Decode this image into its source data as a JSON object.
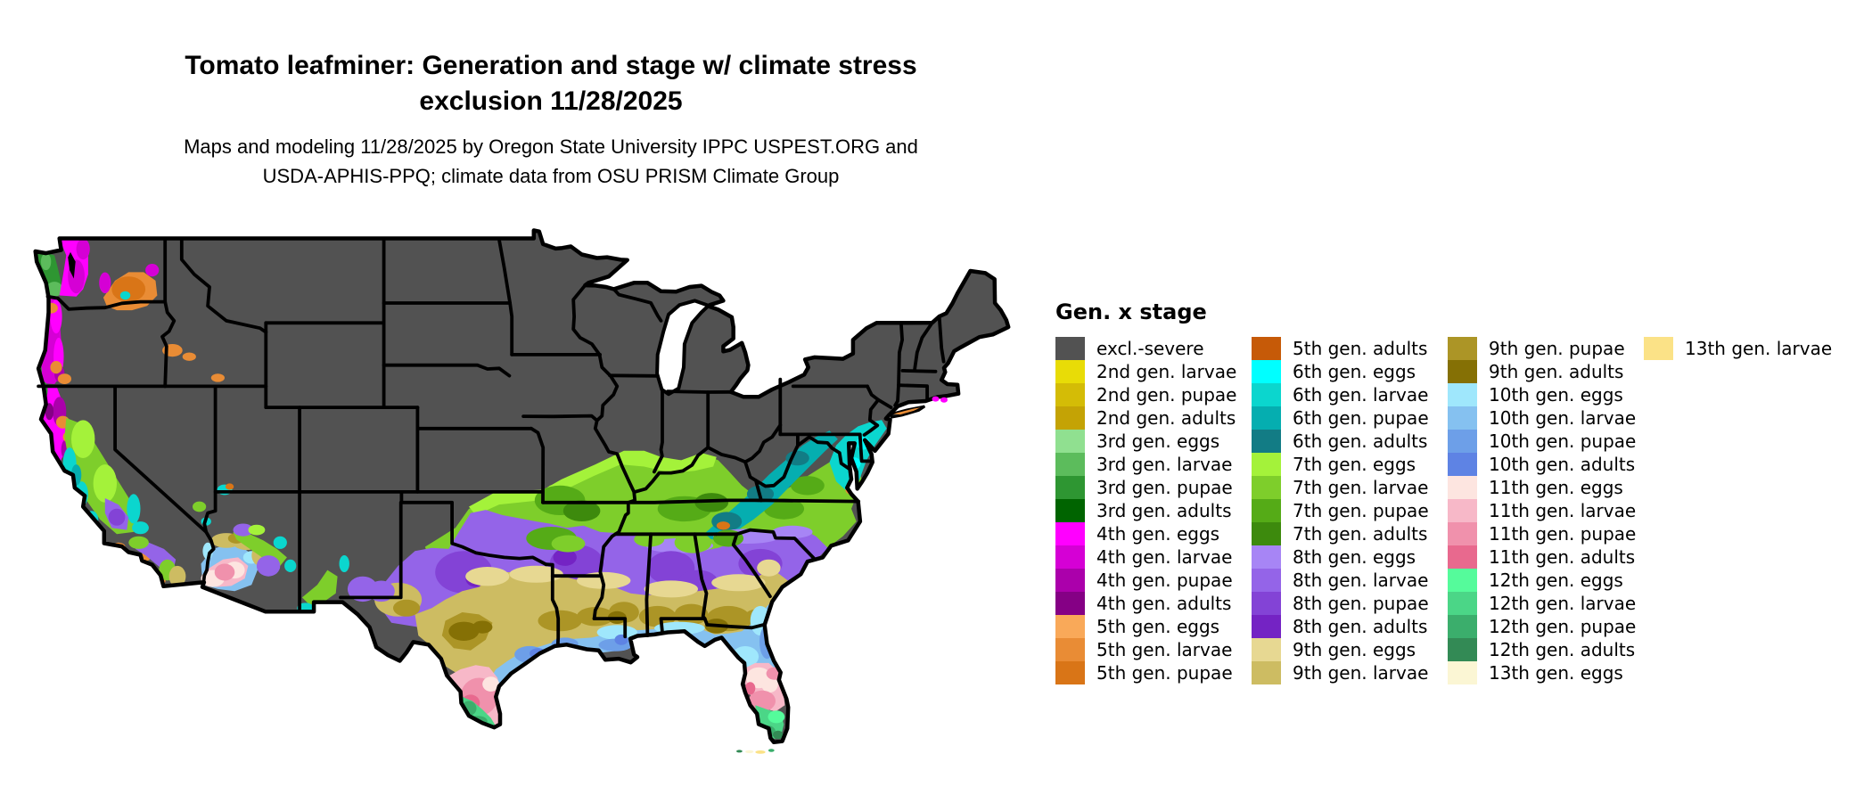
{
  "title": {
    "line1": "Tomato leafminer: Generation and stage w/ climate stress",
    "line2": "exclusion 11/28/2025"
  },
  "subtitle": {
    "line1": "Maps and modeling 11/28/2025 by Oregon State University IPPC USPEST.ORG and",
    "line2": "USDA-APHIS-PPQ; climate data from OSU PRISM Climate Group"
  },
  "legend": {
    "title": "Gen. x stage",
    "rows_per_column": 15,
    "items": [
      {
        "key": "excl",
        "label": "excl.-severe",
        "color": "#525252"
      },
      {
        "key": "g2_larvae",
        "label": "2nd gen. larvae",
        "color": "#E8DC07"
      },
      {
        "key": "g2_pupae",
        "label": "2nd gen. pupae",
        "color": "#D4BC06"
      },
      {
        "key": "g2_adults",
        "label": "2nd gen. adults",
        "color": "#C4A305"
      },
      {
        "key": "g3_eggs",
        "label": "3rd gen. eggs",
        "color": "#90E090"
      },
      {
        "key": "g3_larvae",
        "label": "3rd gen. larvae",
        "color": "#5CBC5C"
      },
      {
        "key": "g3_pupae",
        "label": "3rd gen. pupae",
        "color": "#2E9632"
      },
      {
        "key": "g3_adults",
        "label": "3rd gen. adults",
        "color": "#006400"
      },
      {
        "key": "g4_eggs",
        "label": "4th gen. eggs",
        "color": "#FF00FF"
      },
      {
        "key": "g4_larvae",
        "label": "4th gen. larvae",
        "color": "#D500D5"
      },
      {
        "key": "g4_pupae",
        "label": "4th gen. pupae",
        "color": "#AB00AB"
      },
      {
        "key": "g4_adults",
        "label": "4th gen. adults",
        "color": "#850085"
      },
      {
        "key": "g5_eggs",
        "label": "5th gen. eggs",
        "color": "#F9A959"
      },
      {
        "key": "g5_larvae",
        "label": "5th gen. larvae",
        "color": "#E98C35"
      },
      {
        "key": "g5_pupae",
        "label": "5th gen. pupae",
        "color": "#D97517"
      },
      {
        "key": "g5_adults",
        "label": "5th gen. adults",
        "color": "#C65A08"
      },
      {
        "key": "g6_eggs",
        "label": "6th gen. eggs",
        "color": "#00FFFF"
      },
      {
        "key": "g6_larvae",
        "label": "6th gen. larvae",
        "color": "#0BD6CE"
      },
      {
        "key": "g6_pupae",
        "label": "6th gen. pupae",
        "color": "#05AEB0"
      },
      {
        "key": "g6_adults",
        "label": "6th gen. adults",
        "color": "#127C85"
      },
      {
        "key": "g7_eggs",
        "label": "7th gen. eggs",
        "color": "#A4F23A"
      },
      {
        "key": "g7_larvae",
        "label": "7th gen. larvae",
        "color": "#7ECE2B"
      },
      {
        "key": "g7_pupae",
        "label": "7th gen. pupae",
        "color": "#55AB17"
      },
      {
        "key": "g7_adults",
        "label": "7th gen. adults",
        "color": "#3D8A0D"
      },
      {
        "key": "g8_eggs",
        "label": "8th gen. eggs",
        "color": "#A785F5"
      },
      {
        "key": "g8_larvae",
        "label": "8th gen. larvae",
        "color": "#9464E8"
      },
      {
        "key": "g8_pupae",
        "label": "8th gen. pupae",
        "color": "#8343D6"
      },
      {
        "key": "g8_adults",
        "label": "8th gen. adults",
        "color": "#7423C4"
      },
      {
        "key": "g9_eggs",
        "label": "9th gen. eggs",
        "color": "#E7D892"
      },
      {
        "key": "g9_larvae",
        "label": "9th gen. larvae",
        "color": "#CDBC62"
      },
      {
        "key": "g9_pupae",
        "label": "9th gen. pupae",
        "color": "#AC9526"
      },
      {
        "key": "g9_adults",
        "label": "9th gen. adults",
        "color": "#857005"
      },
      {
        "key": "g10_eggs",
        "label": "10th gen. eggs",
        "color": "#9FE7FC"
      },
      {
        "key": "g10_larvae",
        "label": "10th gen. larvae",
        "color": "#85C1F0"
      },
      {
        "key": "g10_pupae",
        "label": "10th gen. pupae",
        "color": "#6D9FE8"
      },
      {
        "key": "g10_adults",
        "label": "10th gen. adults",
        "color": "#5E83E4"
      },
      {
        "key": "g11_eggs",
        "label": "11th gen. eggs",
        "color": "#FDE5E0"
      },
      {
        "key": "g11_larvae",
        "label": "11th gen. larvae",
        "color": "#F7B8C8"
      },
      {
        "key": "g11_pupae",
        "label": "11th gen. pupae",
        "color": "#F091AC"
      },
      {
        "key": "g11_adults",
        "label": "11th gen. adults",
        "color": "#E8698E"
      },
      {
        "key": "g12_eggs",
        "label": "12th gen. eggs",
        "color": "#55FB9B"
      },
      {
        "key": "g12_larvae",
        "label": "12th gen. larvae",
        "color": "#4BD687"
      },
      {
        "key": "g12_pupae",
        "label": "12th gen. pupae",
        "color": "#3BAE6C"
      },
      {
        "key": "g12_adults",
        "label": "12th gen. adults",
        "color": "#338A55"
      },
      {
        "key": "g13_eggs",
        "label": "13th gen. eggs",
        "color": "#FBF6D4"
      },
      {
        "key": "g13_larvae",
        "label": "13th gen. larvae",
        "color": "#FBE287"
      }
    ]
  },
  "map": {
    "base_fill_key": "excl",
    "background": "#FFFFFF",
    "border_color": "#000000"
  }
}
